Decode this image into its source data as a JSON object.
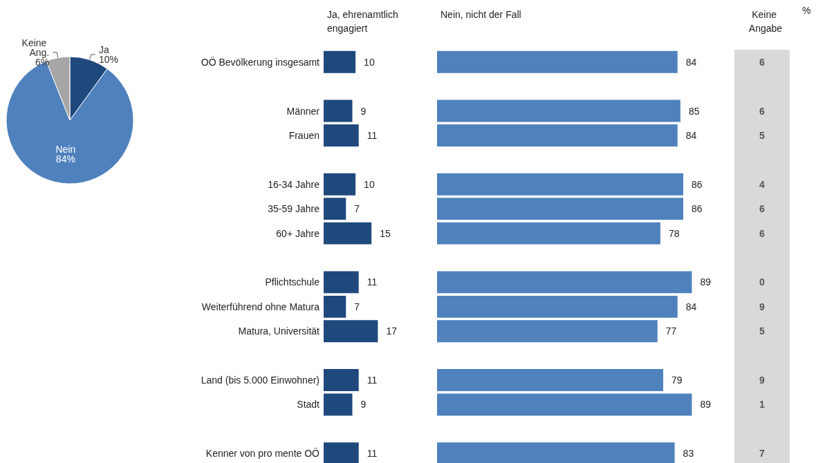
{
  "chart_data": [
    {
      "type": "pie",
      "categories": [
        "Ja",
        "Nein",
        "Keine Ang."
      ],
      "values": [
        10,
        84,
        6
      ],
      "colors": [
        "#1f497d",
        "#4f81bd",
        "#a6a6a6"
      ],
      "value_labels": [
        "10%",
        "84%",
        "6%"
      ]
    },
    {
      "type": "bar",
      "orientation": "horizontal",
      "title": "Ja, ehrenamtlich engagiert",
      "color": "#1f497d",
      "data_labels": true,
      "tick_labels": "y",
      "categories": [
        "OÖ Bevölkerung insgesamt",
        null,
        "Männer",
        "Frauen",
        null,
        "16-34 Jahre",
        "35-59 Jahre",
        "60+ Jahre",
        null,
        "Pflichtschule",
        "Weiterführend ohne Matura",
        "Matura, Universität",
        null,
        "Land (bis 5.000 Einwohner)",
        "Stadt",
        null,
        "Kenner von pro mente OÖ"
      ],
      "values": [
        10,
        null,
        9,
        11,
        null,
        10,
        7,
        15,
        null,
        11,
        7,
        17,
        null,
        11,
        9,
        null,
        11
      ]
    },
    {
      "type": "bar",
      "orientation": "horizontal",
      "title": "Nein, nicht der Fall",
      "color": "#4f81bd",
      "data_labels": true,
      "tick_labels": false,
      "categories": [
        "OÖ Bevölkerung insgesamt",
        null,
        "Männer",
        "Frauen",
        null,
        "16-34 Jahre",
        "35-59 Jahre",
        "60+ Jahre",
        null,
        "Pflichtschule",
        "Weiterführend ohne Matura",
        "Matura, Universität",
        null,
        "Land (bis 5.000 Einwohner)",
        "Stadt",
        null,
        "Kenner von pro mente OÖ"
      ],
      "values": [
        84,
        null,
        85,
        84,
        null,
        86,
        86,
        78,
        null,
        89,
        84,
        77,
        null,
        79,
        89,
        null,
        83
      ]
    },
    {
      "type": "other",
      "title": "Keine Angabe",
      "annotations": [
        "%"
      ],
      "values": [
        6,
        null,
        6,
        5,
        null,
        4,
        6,
        6,
        null,
        0,
        9,
        5,
        null,
        9,
        1,
        null,
        7
      ],
      "value_labels": [
        "6",
        null,
        "6",
        "5",
        null,
        "4",
        "6",
        "6",
        null,
        "0",
        "9",
        "5",
        null,
        "9",
        "1",
        null,
        "7"
      ]
    }
  ]
}
